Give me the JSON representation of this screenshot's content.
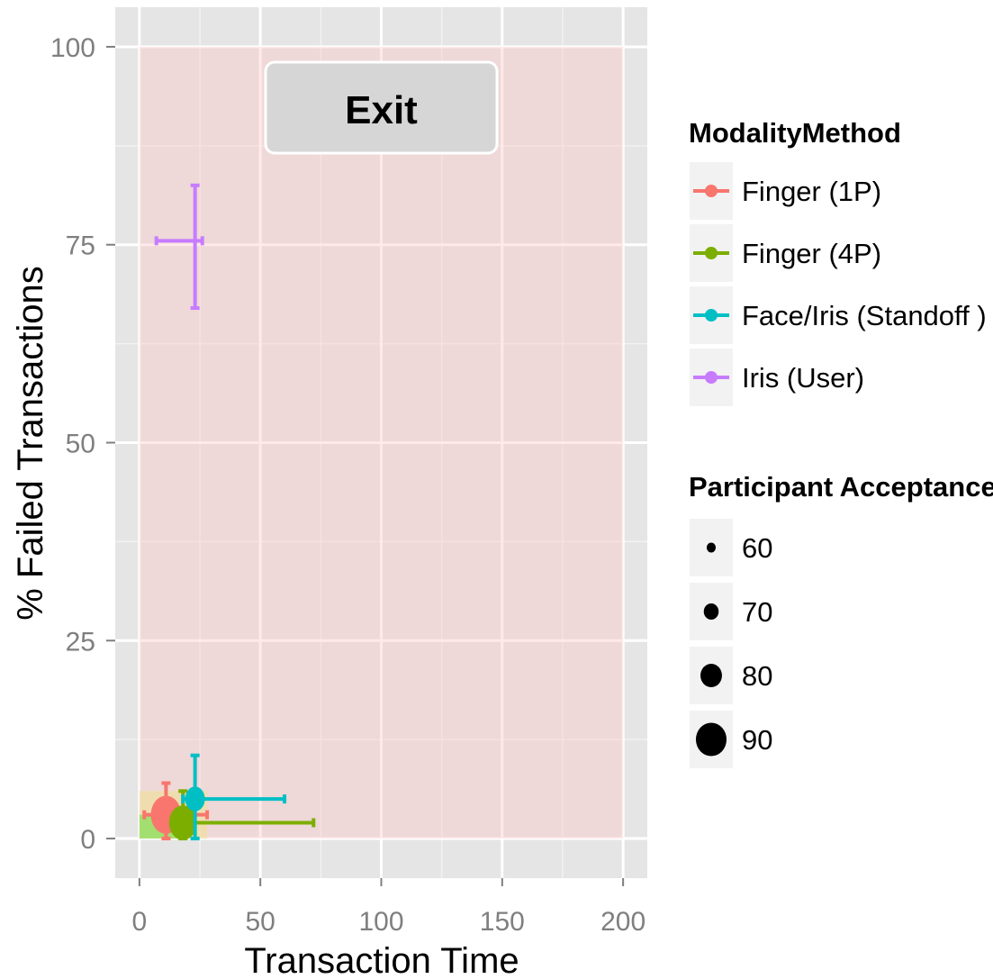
{
  "chart_data": {
    "type": "scatter",
    "xlabel": "Transaction Time",
    "ylabel": "% Failed Transactions",
    "xlim": [
      -10,
      210
    ],
    "ylim": [
      -5,
      105
    ],
    "x_ticks": [
      0,
      50,
      100,
      150,
      200
    ],
    "x_tick_labels": [
      "0",
      "50",
      "100",
      "150",
      "200"
    ],
    "y_ticks": [
      0,
      25,
      50,
      75,
      100
    ],
    "y_tick_labels": [
      "0",
      "25",
      "50",
      "75",
      "100"
    ],
    "grid": true,
    "region_fill": {
      "x": [
        0,
        200
      ],
      "y": [
        0,
        100
      ],
      "color": "#ffc0c0",
      "opacity": 0.35
    },
    "color_legend": {
      "title": "ModalityMethod",
      "placement": "right",
      "entries": [
        "Finger (1P)",
        "Finger (4P)",
        "Face/Iris (Standoff )",
        "Iris (User)"
      ]
    },
    "size_legend": {
      "title": "Participant Acceptance",
      "placement": "right",
      "entries": [
        "60",
        "70",
        "80",
        "90"
      ],
      "values": [
        60,
        70,
        80,
        90
      ]
    },
    "series": [
      {
        "name": "Finger (1P)",
        "color": "#F8766D",
        "x": 11,
        "y": 3,
        "x_err": [
          2,
          28
        ],
        "y_err": [
          0,
          7
        ],
        "acceptance": 90,
        "band": {
          "x": [
            0,
            28
          ],
          "y": [
            0,
            6
          ],
          "color": "#f0e0a0",
          "opacity": 0.7
        }
      },
      {
        "name": "Finger (4P)",
        "color": "#7CAE00",
        "x": 18,
        "y": 2,
        "x_err": [
          18,
          72
        ],
        "y_err": [
          0,
          6
        ],
        "acceptance": 85,
        "band": {
          "x": [
            0,
            18
          ],
          "y": [
            0,
            3
          ],
          "color": "#90e060",
          "opacity": 0.8
        }
      },
      {
        "name": "Face/Iris (Standoff )",
        "color": "#00BFC4",
        "x": 23,
        "y": 5,
        "x_err": [
          18,
          60
        ],
        "y_err": [
          0,
          10.5
        ],
        "acceptance": 70,
        "band": null
      },
      {
        "name": "Iris (User)",
        "color": "#C77CFF",
        "x": 23,
        "y": 75.5,
        "x_err": [
          7,
          26
        ],
        "y_err": [
          67,
          82.5
        ],
        "acceptance": 0,
        "band": null
      }
    ],
    "annotation": {
      "text": "Exit",
      "x": 100,
      "y": 92
    }
  }
}
